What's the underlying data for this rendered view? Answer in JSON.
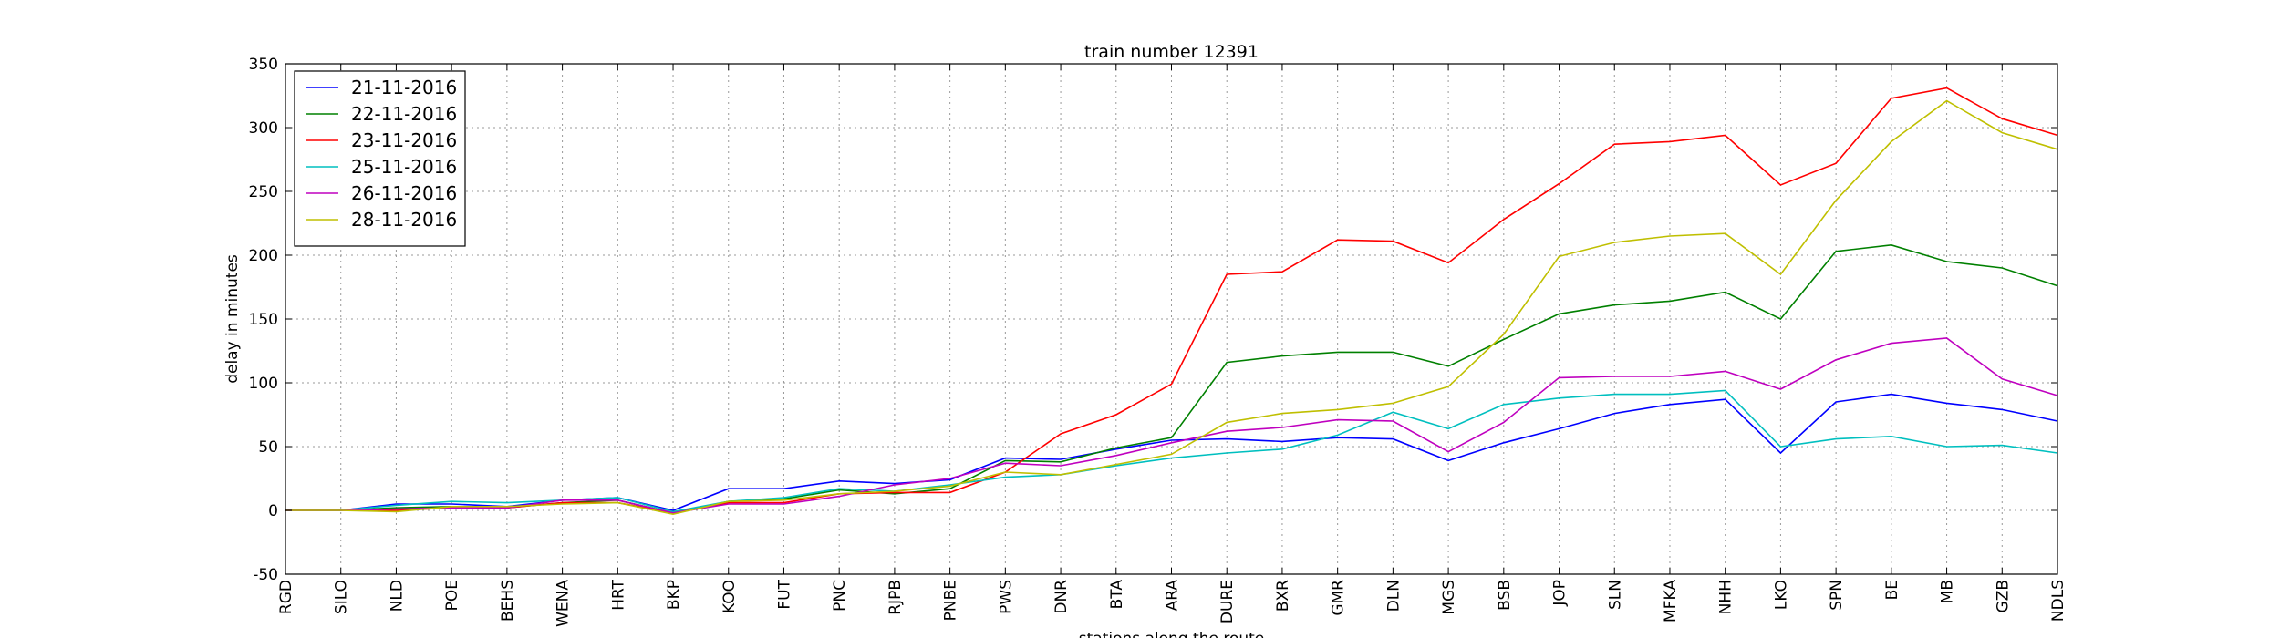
{
  "chart_data": {
    "type": "line",
    "title": "train number 12391",
    "xlabel": "stations along the route",
    "ylabel": "delay in minutes",
    "ylim": [
      -50,
      350
    ],
    "yticks": [
      -50,
      0,
      50,
      100,
      150,
      200,
      250,
      300,
      350
    ],
    "grid": true,
    "legend_position": "top-left",
    "categories": [
      "RGD",
      "SILO",
      "NLD",
      "POE",
      "BEHS",
      "WENA",
      "HRT",
      "BKP",
      "KOO",
      "FUT",
      "PNC",
      "RJPB",
      "PNBE",
      "PWS",
      "DNR",
      "BTA",
      "ARA",
      "DURE",
      "BXR",
      "GMR",
      "DLN",
      "MGS",
      "BSB",
      "JOP",
      "SLN",
      "MFKA",
      "NHH",
      "LKO",
      "SPN",
      "BE",
      "MB",
      "GZB",
      "NDLS"
    ],
    "series": [
      {
        "name": "21-11-2016",
        "color": "#0000ff",
        "values": [
          0,
          0,
          5,
          5,
          3,
          8,
          10,
          0,
          17,
          17,
          23,
          21,
          24,
          41,
          40,
          48,
          55,
          56,
          54,
          57,
          56,
          39,
          53,
          64,
          76,
          83,
          87,
          45,
          85,
          91,
          84,
          79,
          70
        ]
      },
      {
        "name": "22-11-2016",
        "color": "#008000",
        "values": [
          0,
          0,
          2,
          3,
          2,
          6,
          8,
          -2,
          7,
          9,
          16,
          13,
          17,
          39,
          38,
          49,
          57,
          116,
          121,
          124,
          124,
          113,
          134,
          154,
          161,
          164,
          171,
          150,
          203,
          208,
          195,
          190,
          176
        ]
      },
      {
        "name": "23-11-2016",
        "color": "#ff0000",
        "values": [
          0,
          0,
          0,
          2,
          2,
          6,
          6,
          -2,
          6,
          6,
          13,
          14,
          14,
          30,
          60,
          75,
          99,
          185,
          187,
          212,
          211,
          194,
          228,
          256,
          287,
          289,
          294,
          255,
          272,
          323,
          331,
          307,
          294
        ]
      },
      {
        "name": "25-11-2016",
        "color": "#00bfbf",
        "values": [
          0,
          0,
          4,
          7,
          6,
          8,
          10,
          -1,
          7,
          10,
          17,
          15,
          20,
          26,
          28,
          35,
          41,
          45,
          48,
          59,
          77,
          64,
          83,
          88,
          91,
          91,
          94,
          50,
          56,
          58,
          50,
          51,
          45
        ]
      },
      {
        "name": "26-11-2016",
        "color": "#bf00bf",
        "values": [
          0,
          0,
          1,
          2,
          2,
          8,
          8,
          -2,
          5,
          5,
          11,
          20,
          25,
          37,
          35,
          43,
          53,
          62,
          65,
          71,
          70,
          46,
          69,
          104,
          105,
          105,
          109,
          95,
          118,
          131,
          135,
          103,
          90
        ]
      },
      {
        "name": "28-11-2016",
        "color": "#bfbf00",
        "values": [
          0,
          0,
          -1,
          3,
          3,
          5,
          6,
          -3,
          7,
          8,
          13,
          15,
          19,
          30,
          28,
          36,
          44,
          69,
          76,
          79,
          84,
          97,
          138,
          199,
          210,
          215,
          217,
          185,
          243,
          289,
          321,
          296,
          283
        ]
      }
    ]
  }
}
